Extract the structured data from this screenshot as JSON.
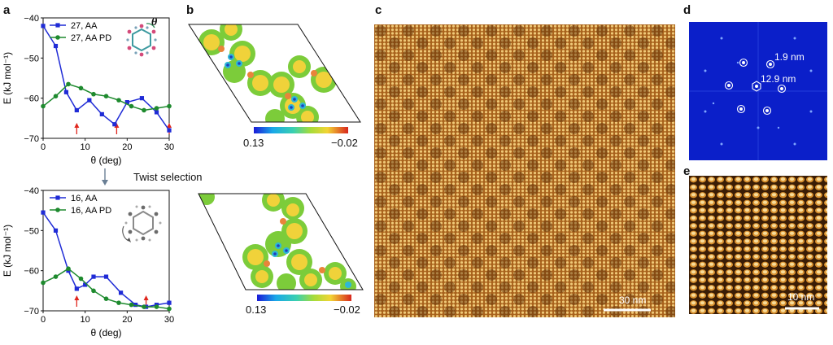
{
  "panels": {
    "a": "a",
    "b": "b",
    "c": "c",
    "d": "d",
    "e": "e"
  },
  "twist_label": "Twist selection",
  "theta_symbol": "θ",
  "colorbar": {
    "min_label": "0.13",
    "max_label": "−0.02"
  },
  "scalebars": {
    "c": "30 nm",
    "e": "10 nm"
  },
  "fft_labels": {
    "small": "1.9 nm",
    "large": "12.9 nm"
  },
  "colors": {
    "AA": "#1f2bd6",
    "AA_PD": "#1e8a2e",
    "arrow": "#e0261d",
    "fft_bg": "#0b1fc9"
  },
  "chart_data": [
    {
      "type": "line",
      "xlabel": "θ (deg)",
      "ylabel": "E (kJ mol⁻¹)",
      "xlim": [
        0,
        30
      ],
      "ylim": [
        -70,
        -40
      ],
      "xticks": [
        0,
        10,
        20,
        30
      ],
      "yticks": [
        -40,
        -50,
        -60,
        -70
      ],
      "legend_position": "top-right",
      "arrows_at": [
        8,
        17.5,
        30
      ],
      "series": [
        {
          "name": "27, AA",
          "marker": "square",
          "color": "#1f2bd6",
          "x": [
            0,
            3,
            5.5,
            8,
            11,
            14,
            17,
            20,
            23.5,
            27,
            30
          ],
          "y": [
            -42,
            -47,
            -58.5,
            -63,
            -60.5,
            -64,
            -66.5,
            -61,
            -60,
            -63.5,
            -68
          ]
        },
        {
          "name": "27, AA PD",
          "marker": "circle",
          "color": "#1e8a2e",
          "x": [
            0,
            3,
            6,
            9,
            12,
            15,
            18,
            21,
            24,
            27,
            30
          ],
          "y": [
            -62,
            -59.5,
            -56.5,
            -57.5,
            -59,
            -59.5,
            -60.5,
            -62,
            -63,
            -62.5,
            -62
          ]
        }
      ]
    },
    {
      "type": "line",
      "xlabel": "θ (deg)",
      "ylabel": "E (kJ mol⁻¹)",
      "xlim": [
        0,
        30
      ],
      "ylim": [
        -70,
        -40
      ],
      "xticks": [
        0,
        10,
        20,
        30
      ],
      "yticks": [
        -40,
        -50,
        -60,
        -70
      ],
      "legend_position": "top-right",
      "arrows_at": [
        8,
        24.5
      ],
      "series": [
        {
          "name": "16, AA",
          "marker": "square",
          "color": "#1f2bd6",
          "x": [
            0,
            3,
            6,
            8,
            10,
            12,
            15,
            18.5,
            22,
            24.5,
            27,
            30
          ],
          "y": [
            -45.5,
            -50,
            -60,
            -64.5,
            -63.5,
            -61.5,
            -61.5,
            -65.5,
            -68.5,
            -69,
            -68.5,
            -68
          ]
        },
        {
          "name": "16, AA PD",
          "marker": "circle",
          "color": "#1e8a2e",
          "x": [
            0,
            3,
            6,
            9,
            12,
            15,
            18,
            21,
            24,
            27,
            30
          ],
          "y": [
            -63,
            -61.5,
            -59.5,
            -62,
            -65,
            -67,
            -68,
            -68.5,
            -69,
            -69,
            -69.5
          ]
        }
      ]
    }
  ]
}
